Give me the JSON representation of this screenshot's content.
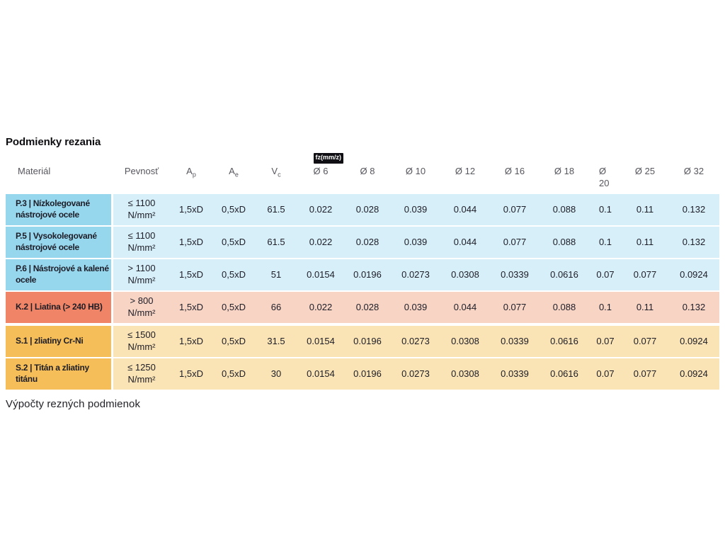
{
  "title": "Podmienky rezania",
  "footer": "Výpočty rezných podmienok",
  "table": {
    "headers": {
      "material": "Materiál",
      "strength": "Pevnosť",
      "ap": {
        "base": "A",
        "sub": "p"
      },
      "ae": {
        "base": "A",
        "sub": "e"
      },
      "vc": {
        "base": "V",
        "sub": "c"
      },
      "fz_badge": "fz(mm/z)",
      "diameters": [
        "Ø 6",
        "Ø 8",
        "Ø 10",
        "Ø 12",
        "Ø 16",
        "Ø 18",
        "Ø 20",
        "Ø 25",
        "Ø 32"
      ]
    },
    "themes": {
      "blue": {
        "label": "#97d7ee",
        "body": "#d7eff9"
      },
      "red": {
        "label": "#ef8566",
        "body": "#f8d4c5"
      },
      "amber": {
        "label": "#f5be58",
        "body": "#fae3b4"
      }
    },
    "rows": [
      {
        "material": "P.3 | Nízkolegované nástrojové ocele",
        "strength": "≤ 1100",
        "strength_unit": "N/mm²",
        "ap": "1,5xD",
        "ae": "0,5xD",
        "vc": "61.5",
        "fz": [
          "0.022",
          "0.028",
          "0.039",
          "0.044",
          "0.077",
          "0.088",
          "0.1",
          "0.11",
          "0.132"
        ],
        "theme": "blue"
      },
      {
        "material": "P.5 | Vysokolegované nástrojové ocele",
        "strength": "≤ 1100",
        "strength_unit": "N/mm²",
        "ap": "1,5xD",
        "ae": "0,5xD",
        "vc": "61.5",
        "fz": [
          "0.022",
          "0.028",
          "0.039",
          "0.044",
          "0.077",
          "0.088",
          "0.1",
          "0.11",
          "0.132"
        ],
        "theme": "blue"
      },
      {
        "material": "P.6 | Nástrojové a kalené ocele",
        "strength": "> 1100",
        "strength_unit": "N/mm²",
        "ap": "1,5xD",
        "ae": "0,5xD",
        "vc": "51",
        "fz": [
          "0.0154",
          "0.0196",
          "0.0273",
          "0.0308",
          "0.0339",
          "0.0616",
          "0.07",
          "0.077",
          "0.0924"
        ],
        "theme": "blue"
      },
      {
        "material": "K.2 | Liatina (> 240 HB)",
        "strength": "> 800",
        "strength_unit": "N/mm²",
        "ap": "1,5xD",
        "ae": "0,5xD",
        "vc": "66",
        "fz": [
          "0.022",
          "0.028",
          "0.039",
          "0.044",
          "0.077",
          "0.088",
          "0.1",
          "0.11",
          "0.132"
        ],
        "theme": "red"
      },
      {
        "material": "S.1 | zliatiny Cr-Ni",
        "strength": "≤ 1500",
        "strength_unit": "N/mm²",
        "ap": "1,5xD",
        "ae": "0,5xD",
        "vc": "31.5",
        "fz": [
          "0.0154",
          "0.0196",
          "0.0273",
          "0.0308",
          "0.0339",
          "0.0616",
          "0.07",
          "0.077",
          "0.0924"
        ],
        "theme": "amber",
        "spacer_before": true
      },
      {
        "material": "S.2 | Titán a zliatiny titánu",
        "strength": "≤ 1250",
        "strength_unit": "N/mm²",
        "ap": "1,5xD",
        "ae": "0,5xD",
        "vc": "30",
        "fz": [
          "0.0154",
          "0.0196",
          "0.0273",
          "0.0308",
          "0.0339",
          "0.0616",
          "0.07",
          "0.077",
          "0.0924"
        ],
        "theme": "amber"
      }
    ]
  }
}
